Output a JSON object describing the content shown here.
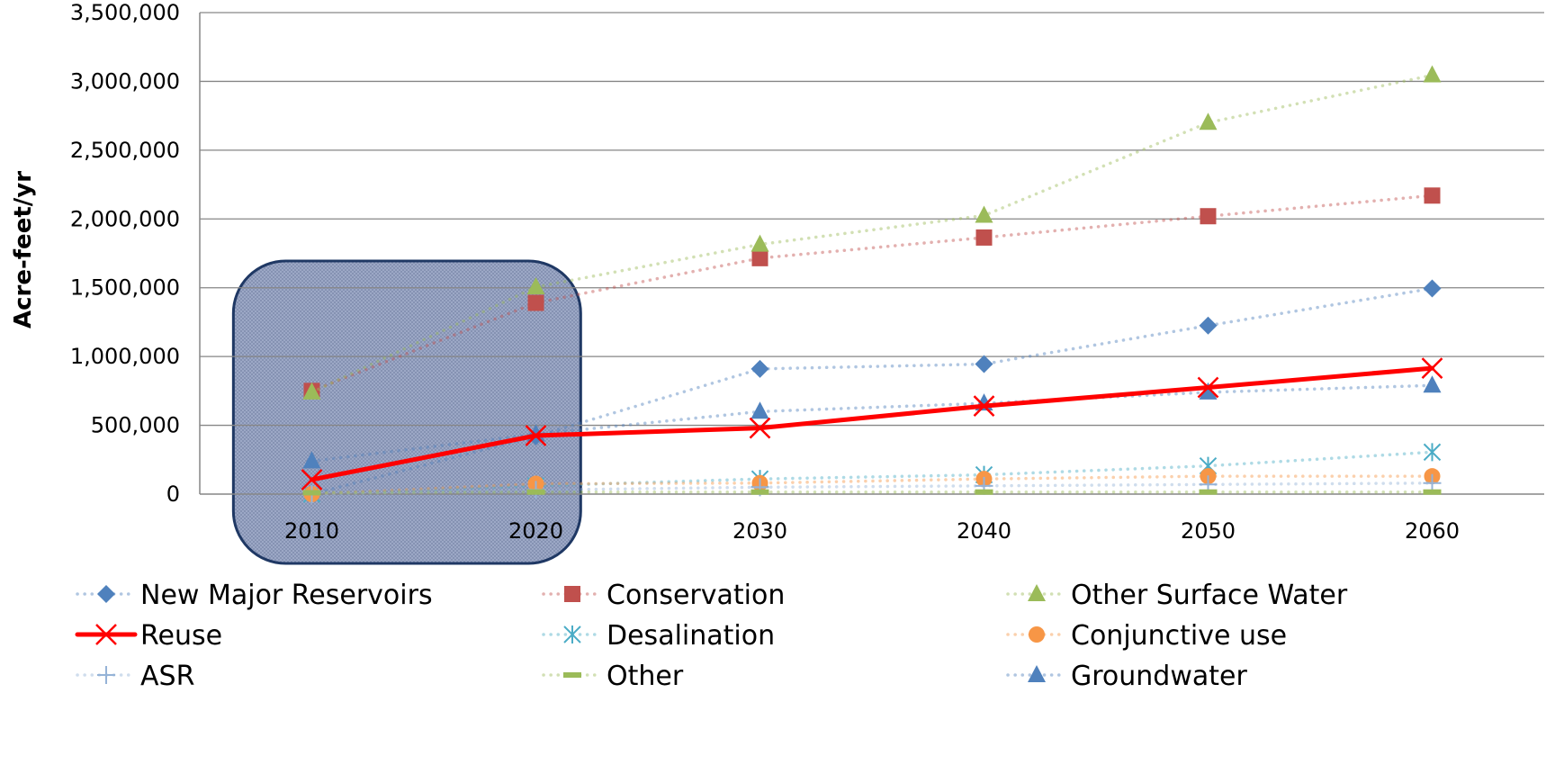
{
  "chart_data": {
    "type": "line",
    "title": "",
    "xlabel": "",
    "ylabel": "Acre-feet/yr",
    "categories": [
      "2010",
      "2020",
      "2030",
      "2040",
      "2050",
      "2060"
    ],
    "ylim": [
      0,
      3500000
    ],
    "yticks": [
      0,
      500000,
      1000000,
      1500000,
      2000000,
      2500000,
      3000000,
      3500000
    ],
    "ytick_labels": [
      "0",
      "500,000",
      "1,000,000",
      "1,500,000",
      "2,000,000",
      "2,500,000",
      "3,000,000",
      "3,500,000"
    ],
    "grid": true,
    "legend_position": "bottom",
    "highlight_region": {
      "categories": [
        "2010",
        "2020"
      ],
      "fill": "#9aa6c4",
      "border": "#1f3864"
    },
    "series": [
      {
        "name": "New Major Reservoirs",
        "values": [
          0,
          420000,
          910000,
          945000,
          1225000,
          1495000
        ],
        "color": "#4f81bd",
        "line": "dotted",
        "marker": "diamond"
      },
      {
        "name": "Conservation",
        "values": [
          750000,
          1390000,
          1715000,
          1865000,
          2020000,
          2170000
        ],
        "color": "#c0504d",
        "line": "dotted",
        "marker": "square"
      },
      {
        "name": "Other Surface Water",
        "values": [
          740000,
          1505000,
          1815000,
          2025000,
          2700000,
          3045000
        ],
        "color": "#9bbb59",
        "line": "dotted",
        "marker": "triangle"
      },
      {
        "name": "Reuse",
        "values": [
          105000,
          425000,
          480000,
          640000,
          775000,
          915000
        ],
        "color": "#ff0000",
        "line": "solid",
        "marker": "x"
      },
      {
        "name": "Desalination",
        "values": [
          0,
          60000,
          110000,
          140000,
          205000,
          305000
        ],
        "color": "#4bacc6",
        "line": "dotted",
        "marker": "asterisk"
      },
      {
        "name": "Conjunctive use",
        "values": [
          0,
          75000,
          80000,
          110000,
          130000,
          130000
        ],
        "color": "#f79646",
        "line": "dotted",
        "marker": "circle"
      },
      {
        "name": "ASR",
        "values": [
          0,
          30000,
          50000,
          60000,
          70000,
          80000
        ],
        "color": "#95b3d7",
        "line": "dotted",
        "marker": "plus"
      },
      {
        "name": "Other",
        "values": [
          10000,
          15000,
          15000,
          15000,
          15000,
          15000
        ],
        "color": "#9bbb59",
        "line": "dotted",
        "marker": "dash"
      },
      {
        "name": "Groundwater",
        "values": [
          240000,
          435000,
          600000,
          660000,
          740000,
          790000
        ],
        "color": "#4f81bd",
        "line": "dotted",
        "marker": "triangle"
      }
    ]
  }
}
